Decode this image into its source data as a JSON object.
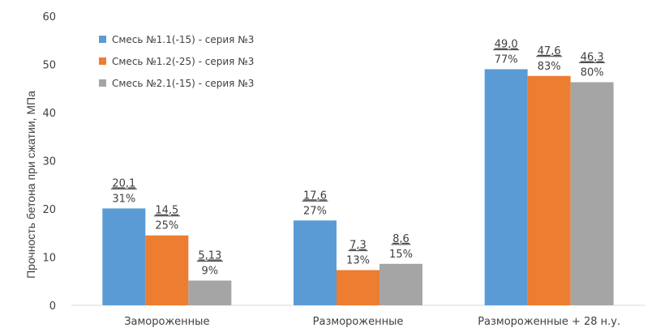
{
  "chart_data": {
    "type": "bar",
    "title": "",
    "ylabel": "Прочность бетона при сжатии, МПа",
    "xlabel": "",
    "ylim": [
      0,
      60
    ],
    "yticks": [
      "0",
      "10",
      "20",
      "30",
      "40",
      "50",
      "60"
    ],
    "grid": false,
    "legend_position": "top-left",
    "categories": [
      "Замороженные",
      "Размороженные",
      "Размороженные + 28 н.у."
    ],
    "series": [
      {
        "name": "Смесь №1.1(-15) - серия №3",
        "color": "#5B9BD5",
        "values": [
          20.1,
          17.6,
          49.0
        ],
        "value_labels": [
          "20,1",
          "17,6",
          "49,0"
        ],
        "percent_labels": [
          "31%",
          "27%",
          "77%"
        ]
      },
      {
        "name": "Смесь №1.2(-25) - серия №3",
        "color": "#ED7D31",
        "values": [
          14.5,
          7.3,
          47.6
        ],
        "value_labels": [
          "14,5",
          "7,3",
          "47,6"
        ],
        "percent_labels": [
          "25%",
          "13%",
          "83%"
        ]
      },
      {
        "name": "Смесь №2.1(-15) - серия №3",
        "color": "#A5A5A5",
        "values": [
          5.13,
          8.6,
          46.3
        ],
        "value_labels": [
          "5,13",
          "8,6",
          "46,3"
        ],
        "percent_labels": [
          "9%",
          "15%",
          "80%"
        ]
      }
    ]
  }
}
